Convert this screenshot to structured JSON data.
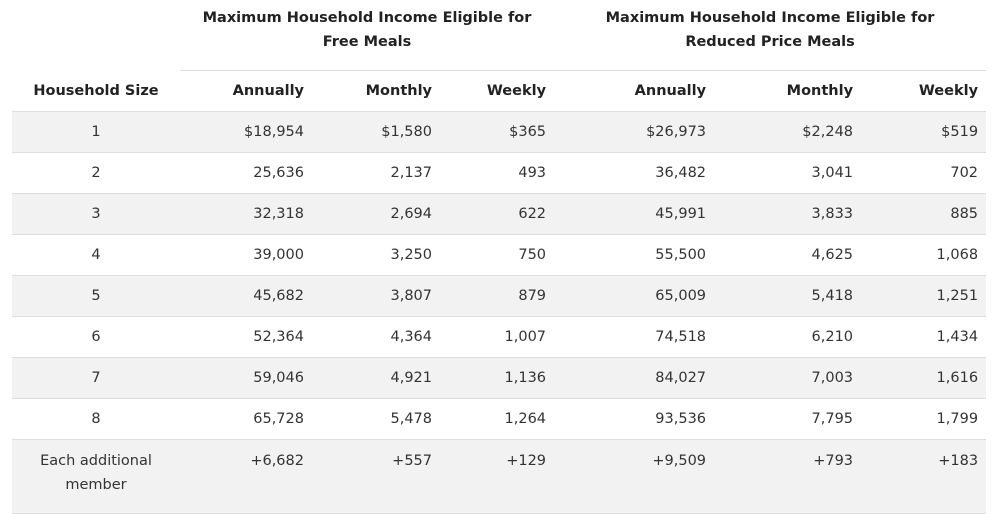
{
  "groups": {
    "free": "Maximum Household Income Eligible for Free Meals",
    "reduced": "Maximum Household Income Eligible for Reduced Price Meals"
  },
  "columns": {
    "size": "Household Size",
    "free_annually": "Annually",
    "free_monthly": "Monthly",
    "free_weekly": "Weekly",
    "reduced_annually": "Annually",
    "reduced_monthly": "Monthly",
    "reduced_weekly": "Weekly"
  },
  "rows": [
    [
      "1",
      "$18,954",
      "$1,580",
      "$365",
      "$26,973",
      "$2,248",
      "$519"
    ],
    [
      "2",
      "25,636",
      "2,137",
      "493",
      "36,482",
      "3,041",
      "702"
    ],
    [
      "3",
      "32,318",
      "2,694",
      "622",
      "45,991",
      "3,833",
      "885"
    ],
    [
      "4",
      "39,000",
      "3,250",
      "750",
      "55,500",
      "4,625",
      "1,068"
    ],
    [
      "5",
      "45,682",
      "3,807",
      "879",
      "65,009",
      "5,418",
      "1,251"
    ],
    [
      "6",
      "52,364",
      "4,364",
      "1,007",
      "74,518",
      "6,210",
      "1,434"
    ],
    [
      "7",
      "59,046",
      "4,921",
      "1,136",
      "84,027",
      "7,003",
      "1,616"
    ],
    [
      "8",
      "65,728",
      "5,478",
      "1,264",
      "93,536",
      "7,795",
      "1,799"
    ],
    [
      "Each additional member",
      "+6,682",
      "+557",
      "+129",
      "+9,509",
      "+793",
      "+183"
    ]
  ]
}
